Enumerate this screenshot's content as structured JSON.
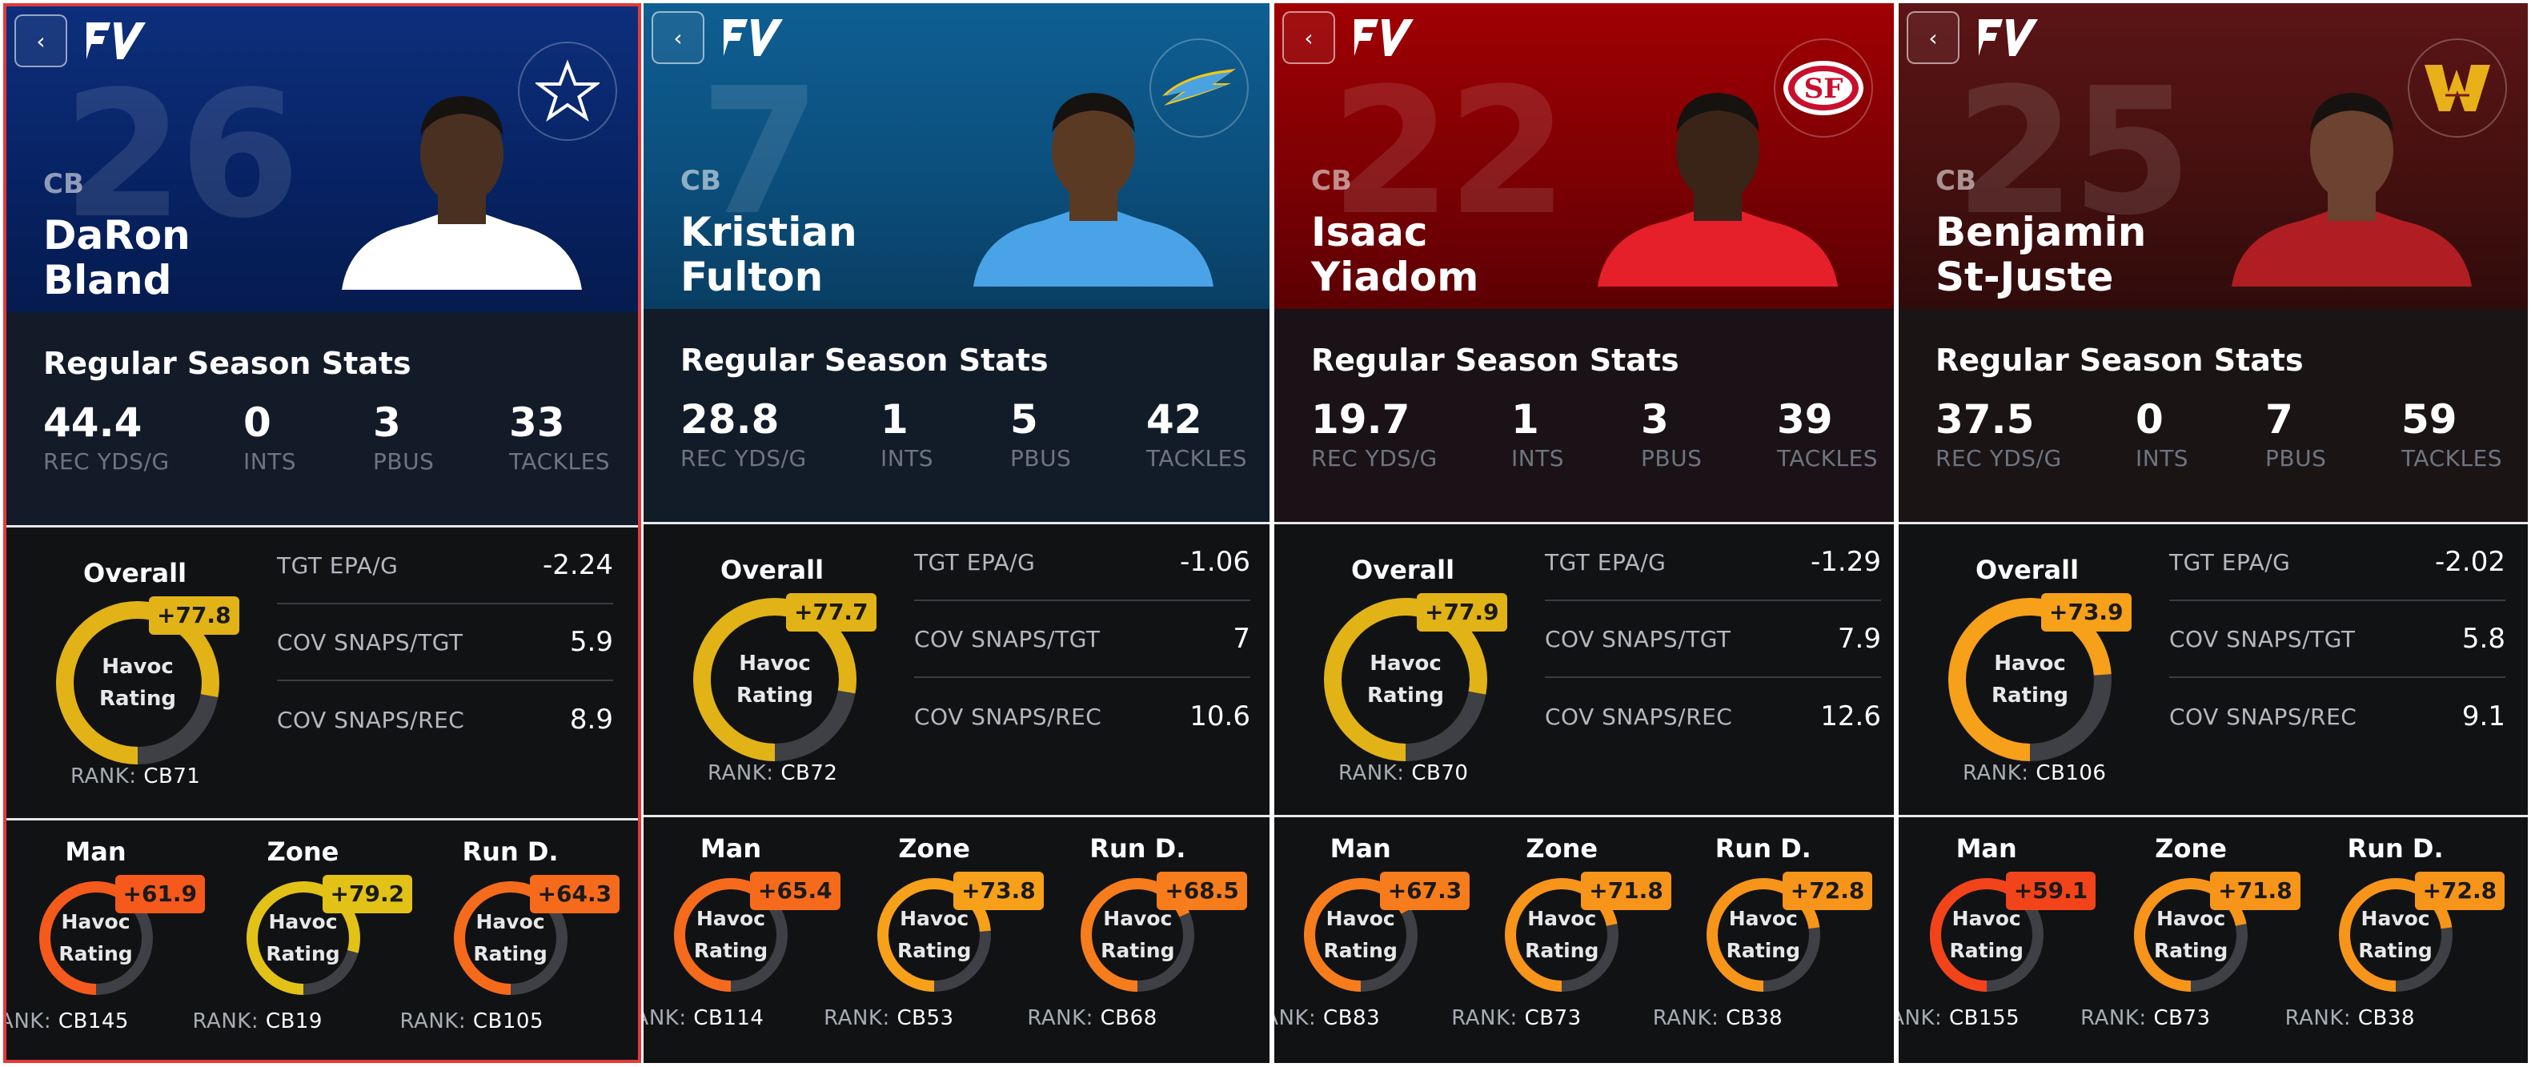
{
  "ui": {
    "back_glyph": "‹",
    "havoc_line1": "Havoc",
    "havoc_line2": "Rating",
    "rank_prefix": "RANK:"
  },
  "labels": {
    "stats_title": "Regular Season Stats",
    "rec_yds": "REC YDS/G",
    "ints": "INTS",
    "pbus": "PBUS",
    "tackles": "TACKLES",
    "overall": "Overall",
    "tgt_epa": "TGT EPA/G",
    "cov_snaps_tgt": "COV SNAPS/TGT",
    "cov_snaps_rec": "COV SNAPS/REC",
    "man": "Man",
    "zone": "Zone",
    "run_d": "Run D."
  },
  "players": [
    {
      "number": "26",
      "position": "CB",
      "first": "DaRon",
      "last": "Bland",
      "team_icon": "cowboys-star-icon",
      "selected": true,
      "stats": {
        "rec_yds": "44.4",
        "ints": "0",
        "pbus": "3",
        "tackles": "33"
      },
      "overall": {
        "value": "+77.8",
        "level": 0.778,
        "rank": "CB71",
        "color": "#e2b316"
      },
      "metrics": {
        "tgt_epa": "-2.24",
        "cov_snaps_tgt": "5.9",
        "cov_snaps_rec": "8.9"
      },
      "man": {
        "value": "+61.9",
        "level": 0.619,
        "rank": "CB145",
        "color": "#f5591b"
      },
      "zone": {
        "value": "+79.2",
        "level": 0.792,
        "rank": "CB19",
        "color": "#e2c217"
      },
      "run_d": {
        "value": "+64.3",
        "level": 0.643,
        "rank": "CB105",
        "color": "#f66a1b"
      }
    },
    {
      "number": "7",
      "position": "CB",
      "first": "Kristian",
      "last": "Fulton",
      "team_icon": "chargers-bolt-icon",
      "selected": false,
      "stats": {
        "rec_yds": "28.8",
        "ints": "1",
        "pbus": "5",
        "tackles": "42"
      },
      "overall": {
        "value": "+77.7",
        "level": 0.777,
        "rank": "CB72",
        "color": "#e2b316"
      },
      "metrics": {
        "tgt_epa": "-1.06",
        "cov_snaps_tgt": "7",
        "cov_snaps_rec": "10.6"
      },
      "man": {
        "value": "+65.4",
        "level": 0.654,
        "rank": "CB114",
        "color": "#f66a1b"
      },
      "zone": {
        "value": "+73.8",
        "level": 0.738,
        "rank": "CB53",
        "color": "#f7a01a"
      },
      "run_d": {
        "value": "+68.5",
        "level": 0.685,
        "rank": "CB68",
        "color": "#f77c1b"
      }
    },
    {
      "number": "22",
      "position": "CB",
      "first": "Isaac",
      "last": "Yiadom",
      "team_icon": "49ers-sf-icon",
      "selected": false,
      "stats": {
        "rec_yds": "19.7",
        "ints": "1",
        "pbus": "3",
        "tackles": "39"
      },
      "overall": {
        "value": "+77.9",
        "level": 0.779,
        "rank": "CB70",
        "color": "#e2b316"
      },
      "metrics": {
        "tgt_epa": "-1.29",
        "cov_snaps_tgt": "7.9",
        "cov_snaps_rec": "12.6"
      },
      "man": {
        "value": "+67.3",
        "level": 0.673,
        "rank": "CB83",
        "color": "#f77c1b"
      },
      "zone": {
        "value": "+71.8",
        "level": 0.718,
        "rank": "CB73",
        "color": "#f7941a"
      },
      "run_d": {
        "value": "+72.8",
        "level": 0.728,
        "rank": "CB38",
        "color": "#f7941a"
      }
    },
    {
      "number": "25",
      "position": "CB",
      "first": "Benjamin",
      "last": "St-Juste",
      "team_icon": "commanders-w-icon",
      "selected": false,
      "stats": {
        "rec_yds": "37.5",
        "ints": "0",
        "pbus": "7",
        "tackles": "59"
      },
      "overall": {
        "value": "+73.9",
        "level": 0.739,
        "rank": "CB106",
        "color": "#f7a01a"
      },
      "metrics": {
        "tgt_epa": "-2.02",
        "cov_snaps_tgt": "5.8",
        "cov_snaps_rec": "9.1"
      },
      "man": {
        "value": "+59.1",
        "level": 0.591,
        "rank": "CB155",
        "color": "#f2431b"
      },
      "zone": {
        "value": "+71.8",
        "level": 0.718,
        "rank": "CB73",
        "color": "#f7941a"
      },
      "run_d": {
        "value": "+72.8",
        "level": 0.728,
        "rank": "CB38",
        "color": "#f7941a"
      }
    }
  ]
}
